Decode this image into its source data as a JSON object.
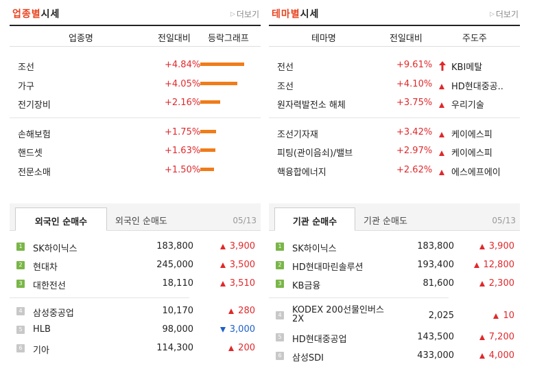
{
  "industry": {
    "title_accent": "업종별",
    "title_rest": "시세",
    "more": "더보기",
    "headers": [
      "업종명",
      "전일대비",
      "등락그래프"
    ],
    "groups": [
      [
        {
          "name": "조선",
          "change": "+4.84%",
          "pct": 4.84
        },
        {
          "name": "가구",
          "change": "+4.05%",
          "pct": 4.05
        },
        {
          "name": "전기장비",
          "change": "+2.16%",
          "pct": 2.16
        }
      ],
      [
        {
          "name": "손해보험",
          "change": "+1.75%",
          "pct": 1.75
        },
        {
          "name": "핸드셋",
          "change": "+1.63%",
          "pct": 1.63
        },
        {
          "name": "전문소매",
          "change": "+1.50%",
          "pct": 1.5
        }
      ]
    ],
    "bar_color": "#f07c1a"
  },
  "theme": {
    "title_accent": "테마별",
    "title_rest": "시세",
    "more": "더보기",
    "headers": [
      "테마명",
      "전일대비",
      "주도주"
    ],
    "groups": [
      [
        {
          "name": "전선",
          "change": "+9.61%",
          "leader": "KBI메탈",
          "icon": "arrow-up-icon"
        },
        {
          "name": "조선",
          "change": "+4.10%",
          "leader": "HD현대중공..",
          "icon": "triangle-up-icon"
        },
        {
          "name": "원자력발전소 해체",
          "change": "+3.75%",
          "leader": "우리기술",
          "icon": "triangle-up-icon"
        }
      ],
      [
        {
          "name": "조선기자재",
          "change": "+3.42%",
          "leader": "케이에스피",
          "icon": "triangle-up-icon"
        },
        {
          "name": "피팅(관이음쇠)/밸브",
          "change": "+2.97%",
          "leader": "케이에스피",
          "icon": "triangle-up-icon"
        },
        {
          "name": "핵융합에너지",
          "change": "+2.62%",
          "leader": "에스에프에이",
          "icon": "triangle-up-icon"
        }
      ]
    ]
  },
  "foreign": {
    "tab_active": "외국인 순매수",
    "tab_inactive": "외국인 순매도",
    "date": "05/13",
    "groups": [
      [
        {
          "rank": "1",
          "name": "SK하이닉스",
          "price": "183,800",
          "change": "3,900",
          "dir": "up"
        },
        {
          "rank": "2",
          "name": "현대차",
          "price": "245,000",
          "change": "3,500",
          "dir": "up"
        },
        {
          "rank": "3",
          "name": "대한전선",
          "price": "18,110",
          "change": "3,510",
          "dir": "up"
        }
      ],
      [
        {
          "rank": "4",
          "name": "삼성중공업",
          "price": "10,170",
          "change": "280",
          "dir": "up"
        },
        {
          "rank": "5",
          "name": "HLB",
          "price": "98,000",
          "change": "3,000",
          "dir": "down"
        },
        {
          "rank": "6",
          "name": "기아",
          "price": "114,300",
          "change": "200",
          "dir": "up"
        }
      ]
    ]
  },
  "institution": {
    "tab_active": "기관 순매수",
    "tab_inactive": "기관 순매도",
    "date": "05/13",
    "groups": [
      [
        {
          "rank": "1",
          "name": "SK하이닉스",
          "price": "183,800",
          "change": "3,900",
          "dir": "up"
        },
        {
          "rank": "2",
          "name": "HD현대마린솔루션",
          "price": "193,400",
          "change": "12,800",
          "dir": "up"
        },
        {
          "rank": "3",
          "name": "KB금융",
          "price": "81,600",
          "change": "2,300",
          "dir": "up"
        }
      ],
      [
        {
          "rank": "4",
          "name": "KODEX 200선물인버스",
          "name2": "2X",
          "price": "2,025",
          "change": "10",
          "dir": "up"
        },
        {
          "rank": "5",
          "name": "HD현대중공업",
          "price": "143,500",
          "change": "7,200",
          "dir": "up"
        },
        {
          "rank": "6",
          "name": "삼성SDI",
          "price": "433,000",
          "change": "4,000",
          "dir": "up"
        }
      ]
    ]
  }
}
